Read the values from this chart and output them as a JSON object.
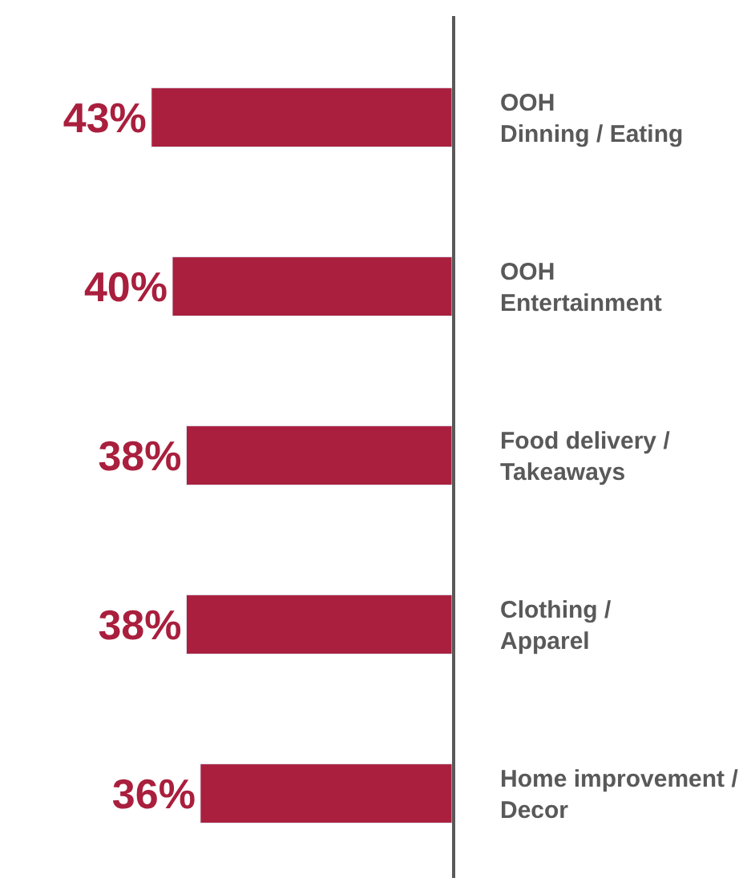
{
  "chart_data": {
    "type": "bar",
    "orientation": "horizontal",
    "categories": [
      "OOH\nDinning / Eating",
      "OOH\nEntertainment",
      "Food delivery /\nTakeaways",
      "Clothing /\nApparel",
      "Home improvement /\nDecor"
    ],
    "values": [
      43,
      40,
      38,
      38,
      36
    ],
    "color": "#a91f3d",
    "value_labels": [
      "43%",
      "40%",
      "38%",
      "38%",
      "36%"
    ],
    "tick_labels": "y",
    "legend": false
  }
}
